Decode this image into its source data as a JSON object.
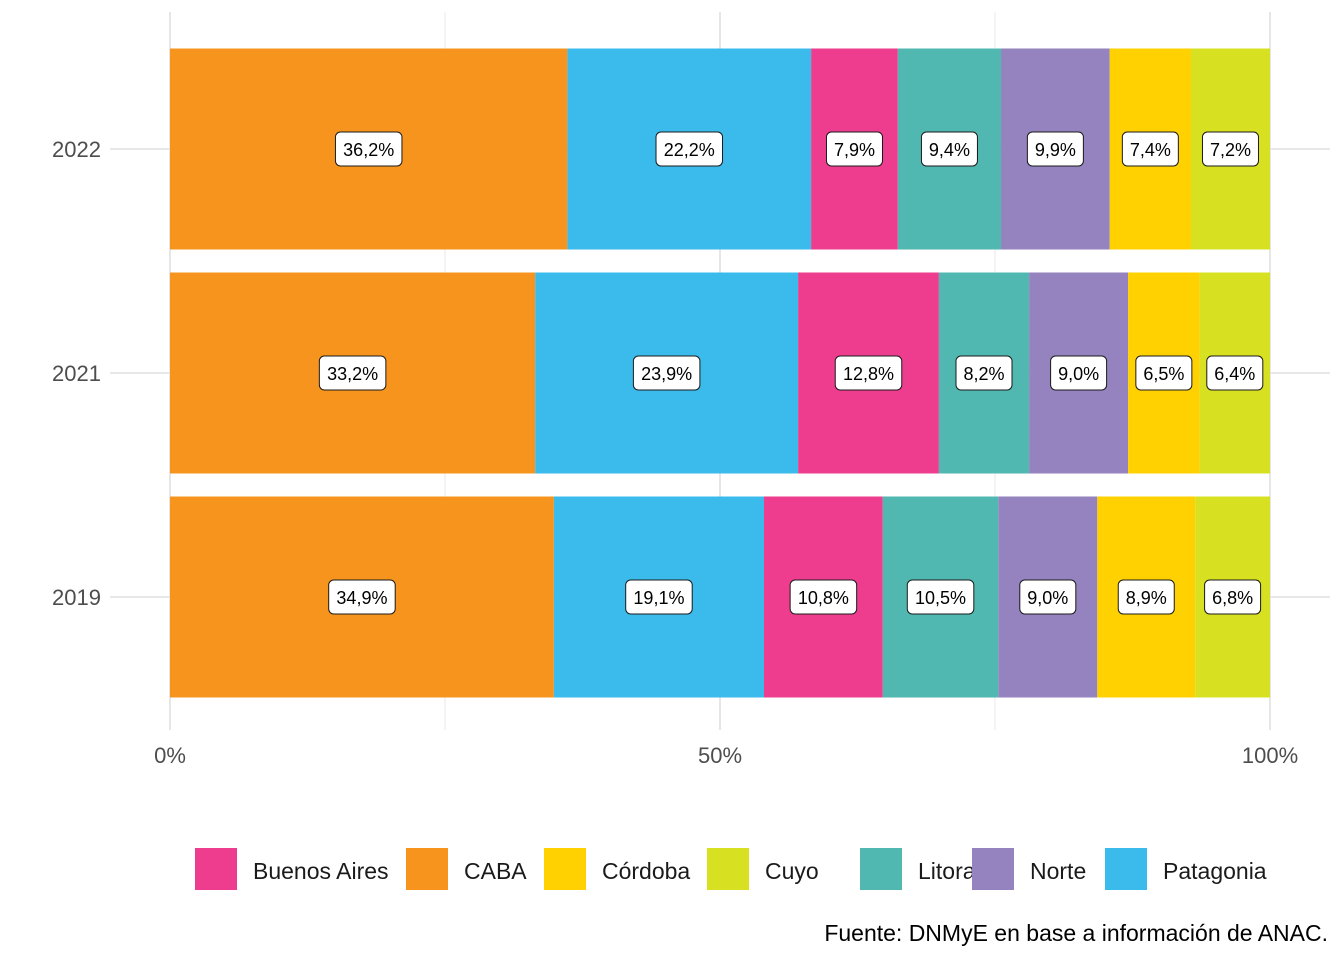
{
  "chart_data": {
    "type": "bar",
    "orientation": "horizontal",
    "stacked": "percent",
    "categories": [
      "2022",
      "2021",
      "2019"
    ],
    "series": [
      {
        "name": "CABA",
        "color": "#F7941D",
        "values": [
          36.2,
          33.2,
          34.9
        ],
        "labels": [
          "36,2%",
          "33,2%",
          "34,9%"
        ]
      },
      {
        "name": "Patagonia",
        "color": "#3BBBEB",
        "values": [
          22.2,
          23.9,
          19.1
        ],
        "labels": [
          "22,2%",
          "23,9%",
          "19,1%"
        ]
      },
      {
        "name": "Buenos Aires",
        "color": "#EE3D8E",
        "values": [
          7.9,
          12.8,
          10.8
        ],
        "labels": [
          "7,9%",
          "12,8%",
          "10,8%"
        ]
      },
      {
        "name": "Litoral",
        "color": "#50B8B1",
        "values": [
          9.4,
          8.2,
          10.5
        ],
        "labels": [
          "9,4%",
          "8,2%",
          "10,5%"
        ]
      },
      {
        "name": "Norte",
        "color": "#9483BE",
        "values": [
          9.9,
          9.0,
          9.0
        ],
        "labels": [
          "9,9%",
          "9,0%",
          "9,0%"
        ]
      },
      {
        "name": "Córdoba",
        "color": "#FFD100",
        "values": [
          7.4,
          6.5,
          8.9
        ],
        "labels": [
          "7,4%",
          "6,5%",
          "8,9%"
        ]
      },
      {
        "name": "Cuyo",
        "color": "#D7E021",
        "values": [
          7.2,
          6.4,
          6.8
        ],
        "labels": [
          "7,2%",
          "6,4%",
          "6,8%"
        ]
      }
    ],
    "xlim": [
      0,
      100
    ],
    "x_ticks": [
      0,
      50,
      100
    ],
    "x_tick_labels": [
      "0%",
      "50%",
      "100%"
    ],
    "grid": true,
    "legend_position": "bottom",
    "legend_order": [
      "Buenos Aires",
      "CABA",
      "Córdoba",
      "Cuyo",
      "Litoral",
      "Norte",
      "Patagonia"
    ],
    "caption": "Fuente: DNMyE en base a información de ANAC."
  }
}
